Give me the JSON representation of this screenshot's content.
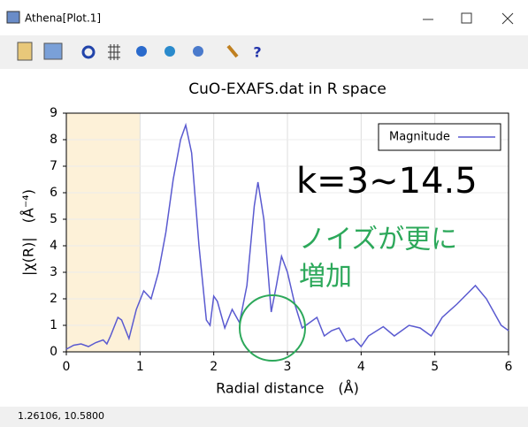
{
  "window": {
    "title": "Athena[Plot.1]",
    "help_button": "?",
    "status": "1.26106,  10.5800"
  },
  "chart_data": {
    "type": "line",
    "title": "CuO-EXAFS.dat in R space",
    "x_label": "Radial distance　(Å)",
    "y_label": "|χ(R)|　(Å⁻⁴)",
    "annotations": [
      "k=3~14.5",
      "ノイズが更に",
      "増加"
    ],
    "xlim": [
      0,
      6
    ],
    "xticks": [
      0,
      1,
      2,
      3,
      4,
      5,
      6
    ],
    "ylim": [
      0,
      9
    ],
    "yticks": [
      0,
      1,
      2,
      3,
      4,
      5,
      6,
      7,
      8,
      9
    ],
    "grid": true,
    "legend": "upper right",
    "highlight": {
      "xlim": [
        0,
        1
      ],
      "color": "#fdf1d8"
    },
    "series": [
      {
        "name": "Magnitude",
        "color": "#5a5ad0",
        "x": [
          0,
          0.1,
          0.2,
          0.3,
          0.4,
          0.5,
          0.55,
          0.6,
          0.7,
          0.75,
          0.85,
          0.95,
          1.05,
          1.15,
          1.25,
          1.35,
          1.45,
          1.55,
          1.62,
          1.7,
          1.8,
          1.9,
          1.95,
          2.0,
          2.05,
          2.15,
          2.25,
          2.35,
          2.45,
          2.55,
          2.6,
          2.68,
          2.78,
          2.85,
          2.92,
          3.0,
          3.1,
          3.2,
          3.3,
          3.4,
          3.5,
          3.6,
          3.7,
          3.8,
          3.9,
          4.0,
          4.1,
          4.3,
          4.45,
          4.65,
          4.8,
          4.95,
          5.1,
          5.3,
          5.55,
          5.7,
          5.9,
          6.0
        ],
        "values": [
          0.1,
          0.25,
          0.3,
          0.2,
          0.35,
          0.45,
          0.3,
          0.6,
          1.3,
          1.2,
          0.5,
          1.6,
          2.3,
          2.0,
          3.0,
          4.5,
          6.5,
          8.0,
          8.55,
          7.5,
          4.0,
          1.2,
          1.0,
          2.1,
          1.9,
          0.9,
          1.6,
          1.1,
          2.5,
          5.5,
          6.4,
          5.0,
          1.5,
          2.5,
          3.6,
          3.0,
          1.8,
          0.9,
          1.1,
          1.3,
          0.6,
          0.8,
          0.9,
          0.4,
          0.5,
          0.2,
          0.6,
          0.95,
          0.6,
          1.0,
          0.9,
          0.6,
          1.3,
          1.8,
          2.5,
          2.0,
          1.0,
          0.8
        ]
      }
    ]
  }
}
